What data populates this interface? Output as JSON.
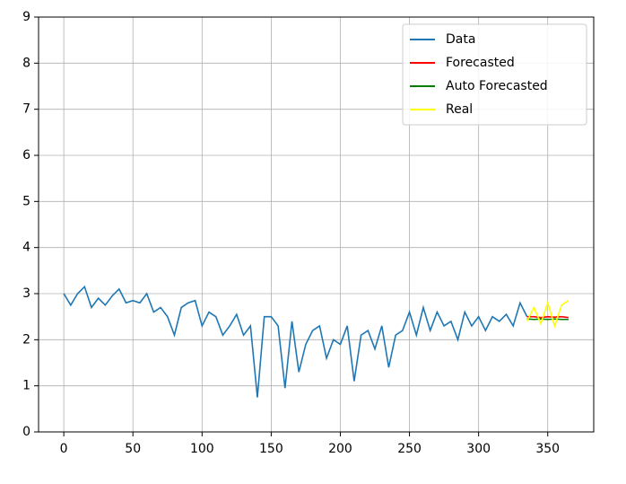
{
  "chart_data": {
    "type": "line",
    "series": [
      {
        "name": "Data",
        "color": "#1f77b4",
        "x": [
          0,
          5,
          10,
          15,
          20,
          25,
          30,
          35,
          40,
          45,
          50,
          55,
          60,
          65,
          70,
          75,
          80,
          85,
          90,
          95,
          100,
          105,
          110,
          115,
          120,
          125,
          130,
          135,
          140,
          145,
          150,
          155,
          160,
          165,
          170,
          175,
          180,
          185,
          190,
          195,
          200,
          205,
          210,
          215,
          220,
          225,
          230,
          235,
          240,
          245,
          250,
          255,
          260,
          265,
          270,
          275,
          280,
          285,
          290,
          295,
          300,
          305,
          310,
          315,
          320,
          325,
          330,
          335
        ],
        "values": [
          3.0,
          2.75,
          3.0,
          3.15,
          2.7,
          2.9,
          2.75,
          2.95,
          3.1,
          2.8,
          2.85,
          2.8,
          3.0,
          2.6,
          2.7,
          2.5,
          2.1,
          2.7,
          2.8,
          2.85,
          2.3,
          2.6,
          2.5,
          2.1,
          2.3,
          2.55,
          2.1,
          2.3,
          0.75,
          2.5,
          2.5,
          2.3,
          0.95,
          2.4,
          1.3,
          1.9,
          2.2,
          2.3,
          1.6,
          2.0,
          1.9,
          2.3,
          1.1,
          2.1,
          2.2,
          1.8,
          2.3,
          1.4,
          2.1,
          2.2,
          2.6,
          2.1,
          2.7,
          2.2,
          2.6,
          2.3,
          2.4,
          2.0,
          2.6,
          2.3,
          2.5,
          2.2,
          2.5,
          2.4,
          2.55,
          2.3,
          2.8,
          2.5
        ]
      },
      {
        "name": "Forecasted",
        "color": "#ff0000",
        "x": [
          335,
          340,
          345,
          350,
          355,
          360,
          365
        ],
        "values": [
          2.5,
          2.5,
          2.48,
          2.5,
          2.49,
          2.5,
          2.48
        ]
      },
      {
        "name": "Auto Forecasted",
        "color": "#008000",
        "x": [
          335,
          340,
          345,
          350,
          355,
          360,
          365
        ],
        "values": [
          2.45,
          2.44,
          2.45,
          2.44,
          2.45,
          2.44,
          2.44
        ]
      },
      {
        "name": "Real",
        "color": "#ffff00",
        "x": [
          335,
          340,
          345,
          350,
          355,
          360,
          365
        ],
        "values": [
          2.4,
          2.7,
          2.35,
          2.8,
          2.3,
          2.75,
          2.85
        ]
      }
    ],
    "xlim": [
      -18.25,
      383.25
    ],
    "xticks": [
      0,
      50,
      100,
      150,
      200,
      250,
      300,
      350
    ],
    "ylim": [
      0,
      9
    ],
    "yticks": [
      0,
      1,
      2,
      3,
      4,
      5,
      6,
      7,
      8,
      9
    ],
    "grid": true,
    "legend": "upper right"
  }
}
